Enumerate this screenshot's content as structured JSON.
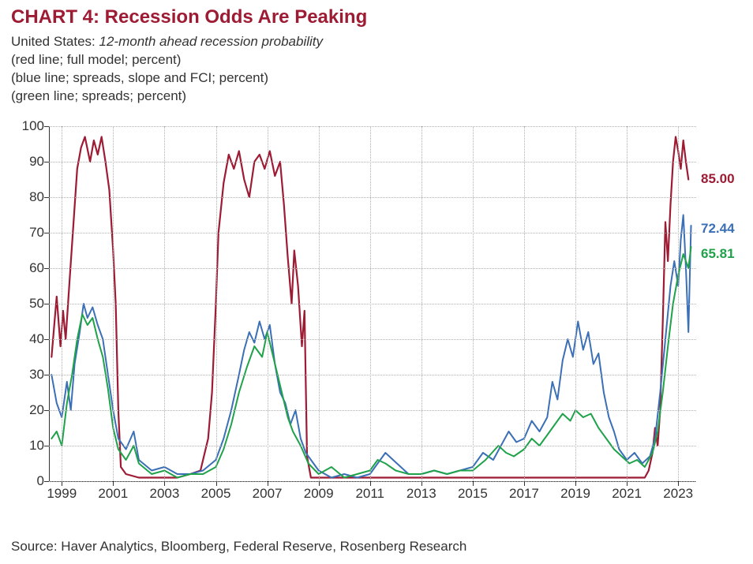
{
  "title": "CHART 4: Recession Odds Are Peaking",
  "title_color": "#9e1b34",
  "subtitle_prefix": "United States: ",
  "subtitle_italic": "12-month ahead recession probability",
  "legend_lines": [
    "(red line; full model; percent)",
    "(blue line; spreads, slope and FCI; percent)",
    "(green line; spreads; percent)"
  ],
  "source": "Source: Haver Analytics, Bloomberg, Federal Reserve, Rosenberg Research",
  "chart": {
    "type": "line",
    "background_color": "#ffffff",
    "grid_color": "#b0b0b0",
    "grid_style": "dotted",
    "axis_color": "#333333",
    "font_size_axis": 17,
    "x": {
      "min": 1998.5,
      "max": 2023.7,
      "ticks": [
        1999,
        2001,
        2003,
        2005,
        2007,
        2009,
        2011,
        2013,
        2015,
        2017,
        2019,
        2021,
        2023
      ]
    },
    "y": {
      "min": 0,
      "max": 100,
      "ticks": [
        0,
        10,
        20,
        30,
        40,
        50,
        60,
        70,
        80,
        90,
        100
      ]
    },
    "series": [
      {
        "name": "full_model",
        "color": "#9e1b34",
        "line_width": 2.2,
        "end_label": "85.00",
        "end_label_y": 85,
        "points": [
          [
            1998.6,
            35
          ],
          [
            1998.8,
            52
          ],
          [
            1998.95,
            38
          ],
          [
            1999.05,
            48
          ],
          [
            1999.15,
            40
          ],
          [
            1999.3,
            56
          ],
          [
            1999.45,
            72
          ],
          [
            1999.6,
            88
          ],
          [
            1999.75,
            94
          ],
          [
            1999.9,
            97
          ],
          [
            2000.1,
            90
          ],
          [
            2000.25,
            96
          ],
          [
            2000.4,
            92
          ],
          [
            2000.55,
            97
          ],
          [
            2000.7,
            90
          ],
          [
            2000.85,
            82
          ],
          [
            2001.0,
            65
          ],
          [
            2001.1,
            50
          ],
          [
            2001.2,
            20
          ],
          [
            2001.3,
            4
          ],
          [
            2001.5,
            2
          ],
          [
            2002.0,
            1
          ],
          [
            2002.5,
            1
          ],
          [
            2003.0,
            1
          ],
          [
            2003.5,
            1
          ],
          [
            2004.0,
            2
          ],
          [
            2004.4,
            3
          ],
          [
            2004.7,
            12
          ],
          [
            2004.85,
            25
          ],
          [
            2005.0,
            50
          ],
          [
            2005.1,
            70
          ],
          [
            2005.3,
            84
          ],
          [
            2005.5,
            92
          ],
          [
            2005.7,
            88
          ],
          [
            2005.9,
            93
          ],
          [
            2006.1,
            85
          ],
          [
            2006.3,
            80
          ],
          [
            2006.5,
            90
          ],
          [
            2006.7,
            92
          ],
          [
            2006.9,
            88
          ],
          [
            2007.1,
            93
          ],
          [
            2007.3,
            86
          ],
          [
            2007.5,
            90
          ],
          [
            2007.65,
            78
          ],
          [
            2007.8,
            63
          ],
          [
            2007.95,
            50
          ],
          [
            2008.05,
            65
          ],
          [
            2008.2,
            55
          ],
          [
            2008.35,
            38
          ],
          [
            2008.45,
            48
          ],
          [
            2008.55,
            7
          ],
          [
            2008.7,
            1
          ],
          [
            2009.0,
            1
          ],
          [
            2010.0,
            1
          ],
          [
            2011.0,
            1
          ],
          [
            2012.0,
            1
          ],
          [
            2013.0,
            1
          ],
          [
            2014.0,
            1
          ],
          [
            2015.0,
            1
          ],
          [
            2016.0,
            1
          ],
          [
            2017.0,
            1
          ],
          [
            2018.0,
            1
          ],
          [
            2019.0,
            1
          ],
          [
            2020.0,
            1
          ],
          [
            2021.0,
            1
          ],
          [
            2021.7,
            1
          ],
          [
            2021.85,
            3
          ],
          [
            2022.0,
            8
          ],
          [
            2022.1,
            15
          ],
          [
            2022.2,
            10
          ],
          [
            2022.3,
            20
          ],
          [
            2022.4,
            45
          ],
          [
            2022.5,
            73
          ],
          [
            2022.6,
            62
          ],
          [
            2022.7,
            78
          ],
          [
            2022.8,
            90
          ],
          [
            2022.9,
            97
          ],
          [
            2023.0,
            93
          ],
          [
            2023.1,
            88
          ],
          [
            2023.2,
            96
          ],
          [
            2023.3,
            90
          ],
          [
            2023.4,
            85
          ]
        ]
      },
      {
        "name": "spreads_slope_fci",
        "color": "#3b6fb6",
        "line_width": 2.0,
        "end_label": "72.44",
        "end_label_y": 71,
        "points": [
          [
            1998.6,
            30
          ],
          [
            1998.8,
            22
          ],
          [
            1999.0,
            18
          ],
          [
            1999.2,
            28
          ],
          [
            1999.35,
            20
          ],
          [
            1999.5,
            33
          ],
          [
            1999.7,
            42
          ],
          [
            1999.85,
            50
          ],
          [
            2000.0,
            46
          ],
          [
            2000.2,
            49
          ],
          [
            2000.4,
            44
          ],
          [
            2000.6,
            40
          ],
          [
            2000.8,
            30
          ],
          [
            2001.0,
            20
          ],
          [
            2001.2,
            12
          ],
          [
            2001.5,
            9
          ],
          [
            2001.8,
            14
          ],
          [
            2002.0,
            6
          ],
          [
            2002.5,
            3
          ],
          [
            2003.0,
            4
          ],
          [
            2003.5,
            2
          ],
          [
            2004.0,
            2
          ],
          [
            2004.5,
            3
          ],
          [
            2005.0,
            6
          ],
          [
            2005.3,
            12
          ],
          [
            2005.6,
            20
          ],
          [
            2005.9,
            30
          ],
          [
            2006.1,
            37
          ],
          [
            2006.3,
            42
          ],
          [
            2006.5,
            39
          ],
          [
            2006.7,
            45
          ],
          [
            2006.9,
            40
          ],
          [
            2007.1,
            44
          ],
          [
            2007.3,
            33
          ],
          [
            2007.5,
            25
          ],
          [
            2007.7,
            22
          ],
          [
            2007.9,
            16
          ],
          [
            2008.1,
            20
          ],
          [
            2008.3,
            12
          ],
          [
            2008.5,
            8
          ],
          [
            2008.8,
            5
          ],
          [
            2009.0,
            3
          ],
          [
            2009.5,
            1
          ],
          [
            2010.0,
            2
          ],
          [
            2010.5,
            1
          ],
          [
            2011.0,
            2
          ],
          [
            2011.3,
            5
          ],
          [
            2011.6,
            8
          ],
          [
            2011.9,
            6
          ],
          [
            2012.2,
            4
          ],
          [
            2012.5,
            2
          ],
          [
            2013.0,
            2
          ],
          [
            2013.5,
            3
          ],
          [
            2014.0,
            2
          ],
          [
            2014.5,
            3
          ],
          [
            2015.0,
            4
          ],
          [
            2015.4,
            8
          ],
          [
            2015.8,
            6
          ],
          [
            2016.1,
            10
          ],
          [
            2016.4,
            14
          ],
          [
            2016.7,
            11
          ],
          [
            2017.0,
            12
          ],
          [
            2017.3,
            17
          ],
          [
            2017.6,
            14
          ],
          [
            2017.9,
            18
          ],
          [
            2018.1,
            28
          ],
          [
            2018.3,
            23
          ],
          [
            2018.5,
            34
          ],
          [
            2018.7,
            40
          ],
          [
            2018.9,
            35
          ],
          [
            2019.1,
            45
          ],
          [
            2019.3,
            37
          ],
          [
            2019.5,
            42
          ],
          [
            2019.7,
            33
          ],
          [
            2019.9,
            36
          ],
          [
            2020.1,
            25
          ],
          [
            2020.3,
            18
          ],
          [
            2020.5,
            14
          ],
          [
            2020.7,
            9
          ],
          [
            2021.0,
            6
          ],
          [
            2021.3,
            8
          ],
          [
            2021.6,
            5
          ],
          [
            2021.9,
            7
          ],
          [
            2022.1,
            12
          ],
          [
            2022.3,
            25
          ],
          [
            2022.5,
            40
          ],
          [
            2022.7,
            55
          ],
          [
            2022.85,
            62
          ],
          [
            2023.0,
            55
          ],
          [
            2023.1,
            68
          ],
          [
            2023.2,
            75
          ],
          [
            2023.3,
            60
          ],
          [
            2023.4,
            42
          ],
          [
            2023.5,
            72
          ]
        ]
      },
      {
        "name": "spreads",
        "color": "#1fa24a",
        "line_width": 2.0,
        "end_label": "65.81",
        "end_label_y": 64,
        "points": [
          [
            1998.6,
            12
          ],
          [
            1998.8,
            14
          ],
          [
            1999.0,
            10
          ],
          [
            1999.2,
            22
          ],
          [
            1999.4,
            30
          ],
          [
            1999.6,
            40
          ],
          [
            1999.8,
            47
          ],
          [
            2000.0,
            44
          ],
          [
            2000.2,
            46
          ],
          [
            2000.4,
            40
          ],
          [
            2000.6,
            35
          ],
          [
            2000.8,
            26
          ],
          [
            2001.0,
            15
          ],
          [
            2001.2,
            9
          ],
          [
            2001.5,
            6
          ],
          [
            2001.8,
            10
          ],
          [
            2002.0,
            5
          ],
          [
            2002.5,
            2
          ],
          [
            2003.0,
            3
          ],
          [
            2003.5,
            1
          ],
          [
            2004.0,
            2
          ],
          [
            2004.5,
            2
          ],
          [
            2005.0,
            4
          ],
          [
            2005.3,
            9
          ],
          [
            2005.6,
            16
          ],
          [
            2005.9,
            25
          ],
          [
            2006.2,
            32
          ],
          [
            2006.5,
            38
          ],
          [
            2006.8,
            35
          ],
          [
            2007.0,
            42
          ],
          [
            2007.2,
            36
          ],
          [
            2007.4,
            30
          ],
          [
            2007.6,
            24
          ],
          [
            2007.8,
            18
          ],
          [
            2008.0,
            14
          ],
          [
            2008.3,
            10
          ],
          [
            2008.6,
            5
          ],
          [
            2009.0,
            2
          ],
          [
            2009.5,
            4
          ],
          [
            2010.0,
            1
          ],
          [
            2010.5,
            2
          ],
          [
            2011.0,
            3
          ],
          [
            2011.3,
            6
          ],
          [
            2011.6,
            5
          ],
          [
            2012.0,
            3
          ],
          [
            2012.5,
            2
          ],
          [
            2013.0,
            2
          ],
          [
            2013.5,
            3
          ],
          [
            2014.0,
            2
          ],
          [
            2014.5,
            3
          ],
          [
            2015.0,
            3
          ],
          [
            2015.5,
            6
          ],
          [
            2016.0,
            10
          ],
          [
            2016.3,
            8
          ],
          [
            2016.6,
            7
          ],
          [
            2017.0,
            9
          ],
          [
            2017.3,
            12
          ],
          [
            2017.6,
            10
          ],
          [
            2017.9,
            13
          ],
          [
            2018.2,
            16
          ],
          [
            2018.5,
            19
          ],
          [
            2018.8,
            17
          ],
          [
            2019.0,
            20
          ],
          [
            2019.3,
            18
          ],
          [
            2019.6,
            19
          ],
          [
            2019.9,
            15
          ],
          [
            2020.2,
            12
          ],
          [
            2020.5,
            9
          ],
          [
            2020.8,
            7
          ],
          [
            2021.1,
            5
          ],
          [
            2021.4,
            6
          ],
          [
            2021.7,
            4
          ],
          [
            2022.0,
            8
          ],
          [
            2022.2,
            14
          ],
          [
            2022.4,
            25
          ],
          [
            2022.6,
            38
          ],
          [
            2022.8,
            50
          ],
          [
            2023.0,
            58
          ],
          [
            2023.2,
            64
          ],
          [
            2023.4,
            60
          ],
          [
            2023.5,
            66
          ]
        ]
      }
    ]
  }
}
